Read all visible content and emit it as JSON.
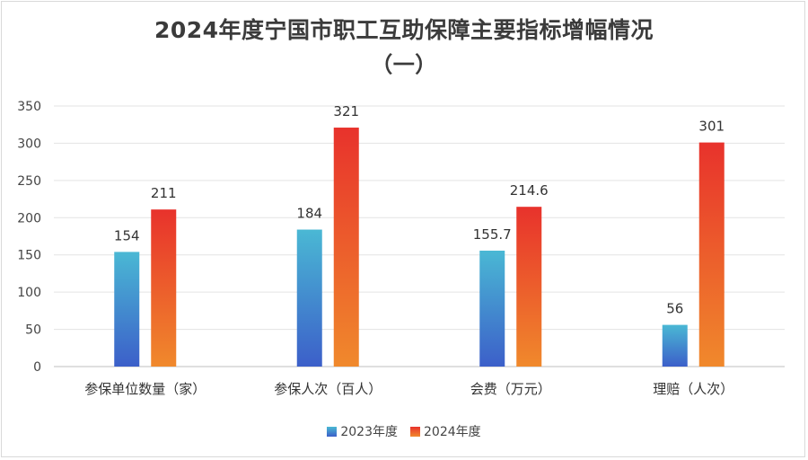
{
  "chart_data": {
    "type": "bar",
    "title_line1": "2024年度宁国市职工互助保障主要指标增幅情况",
    "title_line2": "（一）",
    "categories": [
      "参保单位数量（家）",
      "参保人次（百人）",
      "会费（万元）",
      "理赔（人次）"
    ],
    "series": [
      {
        "name": "2023年度",
        "values": [
          154,
          184,
          155.7,
          56
        ],
        "color_top": "#4ab8d4",
        "color_bottom": "#3c5fc9"
      },
      {
        "name": "2024年度",
        "values": [
          211,
          321,
          214.6,
          301
        ],
        "color_top": "#e8322c",
        "color_bottom": "#f0892c"
      }
    ],
    "ylim": [
      0,
      350
    ],
    "yticks": [
      0,
      50,
      100,
      150,
      200,
      250,
      300,
      350
    ],
    "grid": true,
    "legend": "bottom"
  }
}
